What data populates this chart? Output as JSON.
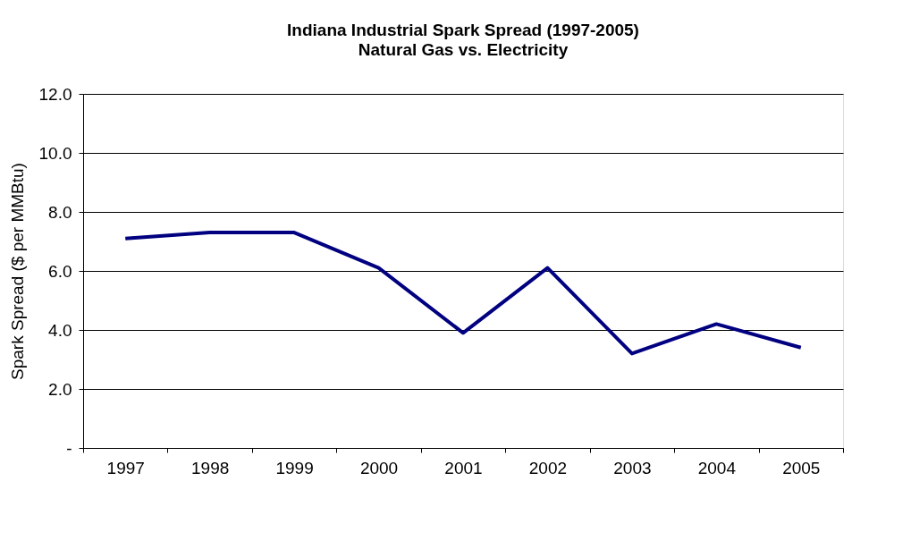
{
  "chart_data": {
    "type": "line",
    "title": "Indiana Industrial Spark Spread (1997-2005)",
    "subtitle": "Natural Gas vs. Electricity",
    "ylabel": "Spark Spread ($ per MMBtu)",
    "categories": [
      "1997",
      "1998",
      "1999",
      "2000",
      "2001",
      "2002",
      "2003",
      "2004",
      "2005"
    ],
    "series": [
      {
        "color": "#000080",
        "values": [
          7.1,
          7.3,
          7.3,
          6.1,
          3.9,
          6.1,
          3.2,
          4.2,
          3.4
        ]
      }
    ],
    "ylim": [
      0,
      12
    ],
    "yticks": [
      {
        "value": 0,
        "label": "-"
      },
      {
        "value": 2,
        "label": "2.0"
      },
      {
        "value": 4,
        "label": "4.0"
      },
      {
        "value": 6,
        "label": "6.0"
      },
      {
        "value": 8,
        "label": "8.0"
      },
      {
        "value": 10,
        "label": "10.0"
      },
      {
        "value": 12,
        "label": "12.0"
      }
    ],
    "grid": "y"
  }
}
